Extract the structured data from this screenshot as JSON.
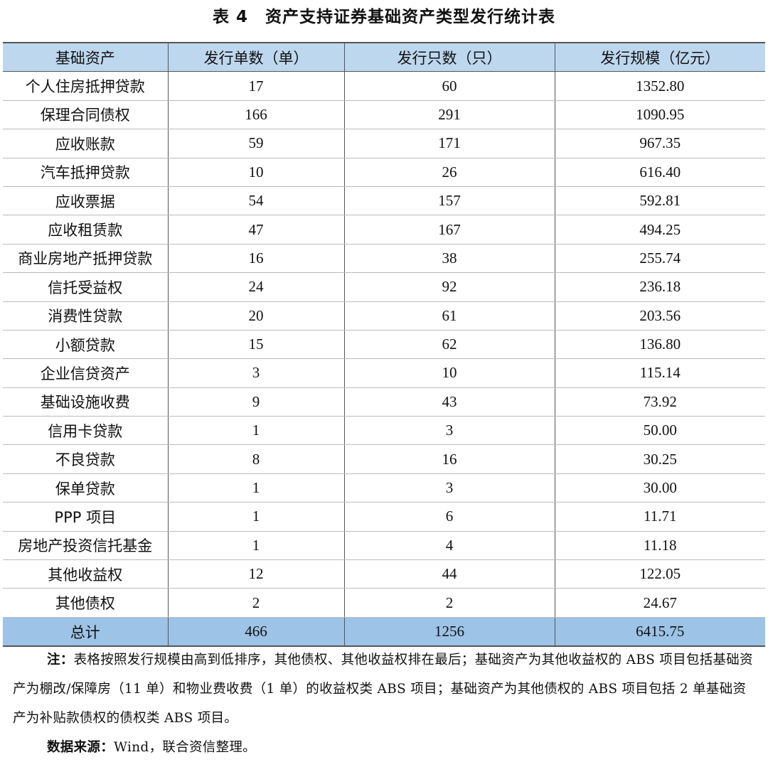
{
  "title": "表 4　资产支持证券基础资产类型发行统计表",
  "table": {
    "headers": [
      "基础资产",
      "发行单数（单）",
      "发行只数（只）",
      "发行规模（亿元）"
    ],
    "rows": [
      [
        "个人住房抵押贷款",
        "17",
        "60",
        "1352.80"
      ],
      [
        "保理合同债权",
        "166",
        "291",
        "1090.95"
      ],
      [
        "应收账款",
        "59",
        "171",
        "967.35"
      ],
      [
        "汽车抵押贷款",
        "10",
        "26",
        "616.40"
      ],
      [
        "应收票据",
        "54",
        "157",
        "592.81"
      ],
      [
        "应收租赁款",
        "47",
        "167",
        "494.25"
      ],
      [
        "商业房地产抵押贷款",
        "16",
        "38",
        "255.74"
      ],
      [
        "信托受益权",
        "24",
        "92",
        "236.18"
      ],
      [
        "消费性贷款",
        "20",
        "61",
        "203.56"
      ],
      [
        "小额贷款",
        "15",
        "62",
        "136.80"
      ],
      [
        "企业信贷资产",
        "3",
        "10",
        "115.14"
      ],
      [
        "基础设施收费",
        "9",
        "43",
        "73.92"
      ],
      [
        "信用卡贷款",
        "1",
        "3",
        "50.00"
      ],
      [
        "不良贷款",
        "8",
        "16",
        "30.25"
      ],
      [
        "保单贷款",
        "1",
        "3",
        "30.00"
      ],
      [
        "PPP 项目",
        "1",
        "6",
        "11.71"
      ],
      [
        "房地产投资信托基金",
        "1",
        "4",
        "11.18"
      ],
      [
        "其他收益权",
        "12",
        "44",
        "122.05"
      ],
      [
        "其他债权",
        "2",
        "2",
        "24.67"
      ]
    ],
    "total": [
      "总计",
      "466",
      "1256",
      "6415.75"
    ]
  },
  "colors": {
    "header_bg": "#bdd7ee",
    "total_bg": "#9dc3e6"
  },
  "notes": {
    "note_label": "注：",
    "note_text": "表格按照发行规模由高到低排序，其他债权、其他收益权排在最后；基础资产为其他收益权的 ABS 项目包括基础资产为棚改/保障房（11 单）和物业费收费（1 单）的收益权类 ABS 项目；基础资产为其他债权的 ABS 项目包括 2 单基础资产为补贴款债权的债权类 ABS 项目。",
    "source_label": "数据来源：",
    "source_text": "Wind，联合资信整理。"
  }
}
